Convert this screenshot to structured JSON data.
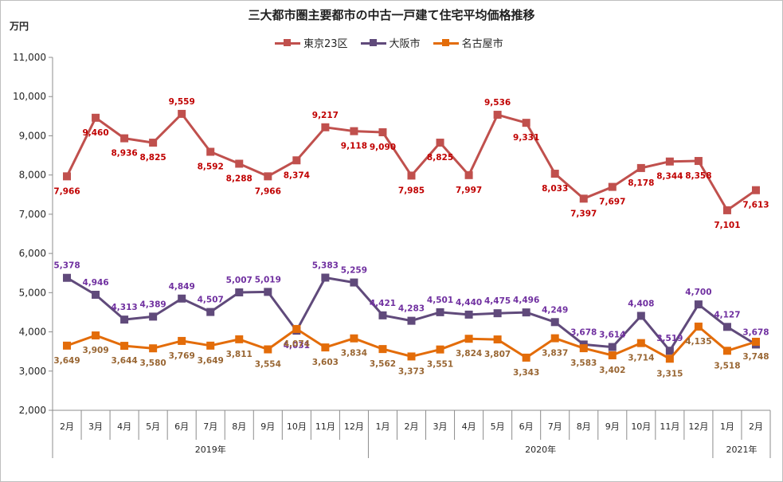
{
  "chart_data": {
    "type": "line",
    "title": "三大都市圏主要都市の中古一戸建て住宅平均価格推移",
    "ylabel": "万円",
    "ylim": [
      2000,
      11000
    ],
    "y_ticks": [
      "2,000",
      "3,000",
      "4,000",
      "5,000",
      "6,000",
      "7,000",
      "8,000",
      "9,000",
      "10,000",
      "11,000"
    ],
    "categories": [
      "2月",
      "3月",
      "4月",
      "5月",
      "6月",
      "7月",
      "8月",
      "9月",
      "10月",
      "11月",
      "12月",
      "1月",
      "2月",
      "3月",
      "4月",
      "5月",
      "6月",
      "7月",
      "8月",
      "9月",
      "10月",
      "11月",
      "12月",
      "1月",
      "2月"
    ],
    "year_groups": [
      {
        "label": "2019年",
        "count": 11
      },
      {
        "label": "2020年",
        "count": 12
      },
      {
        "label": "2021年",
        "count": 2
      }
    ],
    "series": [
      {
        "name": "東京23区",
        "color": "#c0504d",
        "label_color": "#c00000",
        "values": [
          7966,
          9460,
          8936,
          8825,
          9559,
          8592,
          8288,
          7966,
          8374,
          9217,
          9118,
          9090,
          7985,
          8825,
          7997,
          9536,
          9331,
          8033,
          7397,
          7697,
          8178,
          8344,
          8358,
          7101,
          7613
        ],
        "labels": [
          "7,966",
          "9,460",
          "8,936",
          "8,825",
          "9,559",
          "8,592",
          "8,288",
          "7,966",
          "8,374",
          "9,217",
          "9,118",
          "9,090",
          "7,985",
          "8,825",
          "7,997",
          "9,536",
          "9,331",
          "8,033",
          "7,397",
          "7,697",
          "8,178",
          "8,344",
          "8,358",
          "7,101",
          "7,613"
        ]
      },
      {
        "name": "大阪市",
        "color": "#604a7b",
        "label_color": "#7030a0",
        "values": [
          5378,
          4946,
          4313,
          4389,
          4849,
          4507,
          5007,
          5019,
          4031,
          5383,
          5259,
          4421,
          4283,
          4501,
          4440,
          4475,
          4496,
          4249,
          3678,
          3614,
          4408,
          3519,
          4700,
          4127,
          3678
        ],
        "labels": [
          "5,378",
          "4,946",
          "4,313",
          "4,389",
          "4,849",
          "4,507",
          "5,007",
          "5,019",
          "4,031",
          "5,383",
          "5,259",
          "4,421",
          "4,283",
          "4,501",
          "4,440",
          "4,475",
          "4,496",
          "4,249",
          "3,678",
          "3,614",
          "4,408",
          "3,519",
          "4,700",
          "4,127",
          "3,678"
        ]
      },
      {
        "name": "名古屋市",
        "color": "#e36c09",
        "label_color": "#996633",
        "values": [
          3649,
          3909,
          3644,
          3580,
          3769,
          3649,
          3811,
          3554,
          4074,
          3603,
          3834,
          3562,
          3373,
          3551,
          3824,
          3807,
          3343,
          3837,
          3583,
          3402,
          3714,
          3315,
          4135,
          3518,
          3748
        ],
        "labels": [
          "3,649",
          "3,909",
          "3,644",
          "3,580",
          "3,769",
          "3,649",
          "3,811",
          "3,554",
          "4,074",
          "3,603",
          "3,834",
          "3,562",
          "3,373",
          "3,551",
          "3,824",
          "3,807",
          "3,343",
          "3,837",
          "3,583",
          "3,402",
          "3,714",
          "3,315",
          "4,135",
          "3,518",
          "3,748"
        ]
      }
    ]
  }
}
